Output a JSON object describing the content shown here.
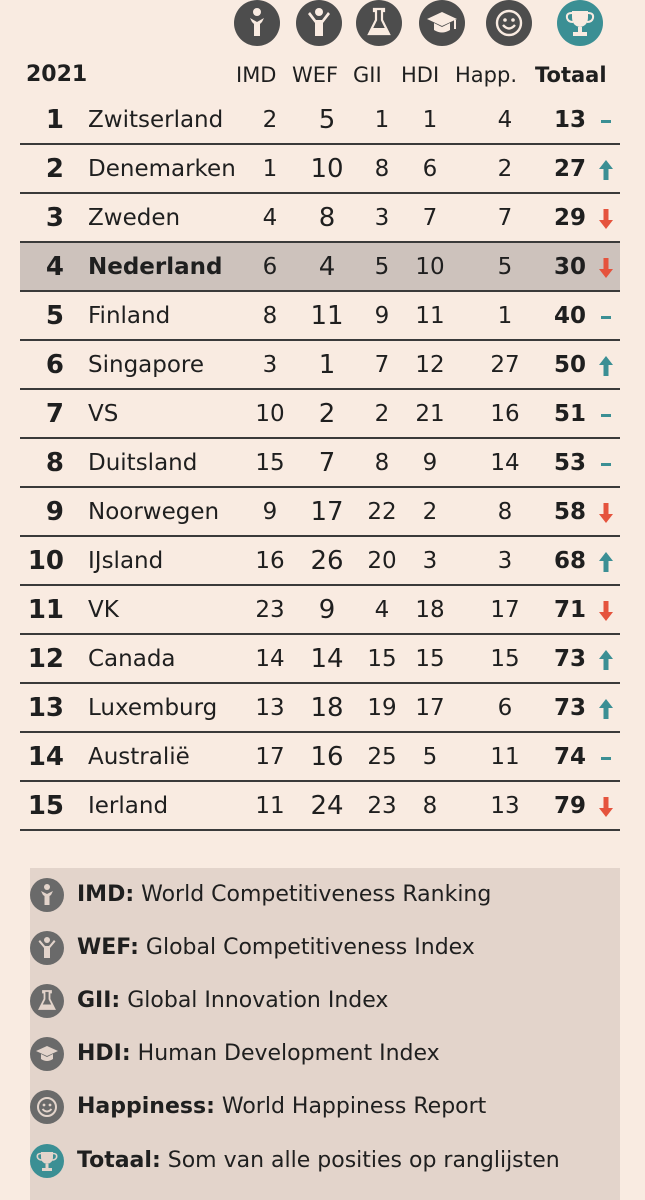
{
  "colors": {
    "up": "#3b8f94",
    "down": "#e5533d",
    "flat": "#3b8f94",
    "highlight": "#cdc2bc"
  },
  "icons": [
    "person-arms-down-icon",
    "person-arms-up-icon",
    "flask-icon",
    "graduation-cap-icon",
    "smiley-icon",
    "trophy-icon"
  ],
  "header": {
    "year": "2021",
    "imd": "IMD",
    "wef": "WEF",
    "gii": "GII",
    "hdi": "HDI",
    "happ": "Happ.",
    "total": "Totaal"
  },
  "rows": [
    {
      "rank": "1",
      "country": "Zwitserland",
      "imd": "2",
      "wef": "5",
      "gii": "1",
      "hdi": "1",
      "happ": "4",
      "total": "13",
      "trend": "flat"
    },
    {
      "rank": "2",
      "country": "Denemarken",
      "imd": "1",
      "wef": "10",
      "gii": "8",
      "hdi": "6",
      "happ": "2",
      "total": "27",
      "trend": "up"
    },
    {
      "rank": "3",
      "country": "Zweden",
      "imd": "4",
      "wef": "8",
      "gii": "3",
      "hdi": "7",
      "happ": "7",
      "total": "29",
      "trend": "down"
    },
    {
      "rank": "4",
      "country": "Nederland",
      "imd": "6",
      "wef": "4",
      "gii": "5",
      "hdi": "10",
      "happ": "5",
      "total": "30",
      "trend": "down",
      "highlight": true
    },
    {
      "rank": "5",
      "country": "Finland",
      "imd": "8",
      "wef": "11",
      "gii": "9",
      "hdi": "11",
      "happ": "1",
      "total": "40",
      "trend": "flat"
    },
    {
      "rank": "6",
      "country": "Singapore",
      "imd": "3",
      "wef": "1",
      "gii": "7",
      "hdi": "12",
      "happ": "27",
      "total": "50",
      "trend": "up"
    },
    {
      "rank": "7",
      "country": "VS",
      "imd": "10",
      "wef": "2",
      "gii": "2",
      "hdi": "21",
      "happ": "16",
      "total": "51",
      "trend": "flat"
    },
    {
      "rank": "8",
      "country": "Duitsland",
      "imd": "15",
      "wef": "7",
      "gii": "8",
      "hdi": "9",
      "happ": "14",
      "total": "53",
      "trend": "flat"
    },
    {
      "rank": "9",
      "country": "Noorwegen",
      "imd": "9",
      "wef": "17",
      "gii": "22",
      "hdi": "2",
      "happ": "8",
      "total": "58",
      "trend": "down"
    },
    {
      "rank": "10",
      "country": "IJsland",
      "imd": "16",
      "wef": "26",
      "gii": "20",
      "hdi": "3",
      "happ": "3",
      "total": "68",
      "trend": "up"
    },
    {
      "rank": "11",
      "country": "VK",
      "imd": "23",
      "wef": "9",
      "gii": "4",
      "hdi": "18",
      "happ": "17",
      "total": "71",
      "trend": "down"
    },
    {
      "rank": "12",
      "country": "Canada",
      "imd": "14",
      "wef": "14",
      "gii": "15",
      "hdi": "15",
      "happ": "15",
      "total": "73",
      "trend": "up"
    },
    {
      "rank": "13",
      "country": "Luxemburg",
      "imd": "13",
      "wef": "18",
      "gii": "19",
      "hdi": "17",
      "happ": "6",
      "total": "73",
      "trend": "up"
    },
    {
      "rank": "14",
      "country": "Australië",
      "imd": "17",
      "wef": "16",
      "gii": "25",
      "hdi": "5",
      "happ": "11",
      "total": "74",
      "trend": "flat"
    },
    {
      "rank": "15",
      "country": "Ierland",
      "imd": "11",
      "wef": "24",
      "gii": "23",
      "hdi": "8",
      "happ": "13",
      "total": "79",
      "trend": "down"
    }
  ],
  "legend": [
    {
      "key": "IMD:",
      "text": " World Competitiveness Ranking",
      "icon": "person-arms-down-icon"
    },
    {
      "key": "WEF:",
      "text": " Global Competitiveness Index",
      "icon": "person-arms-up-icon"
    },
    {
      "key": "GII:",
      "text": " Global Innovation Index",
      "icon": "flask-icon"
    },
    {
      "key": "HDI:",
      "text": " Human Development Index",
      "icon": "graduation-cap-icon"
    },
    {
      "key": "Happiness:",
      "text": " World Happiness Report",
      "icon": "smiley-icon"
    },
    {
      "key": "Totaal:",
      "text": " Som van alle posities op ranglijsten",
      "icon": "trophy-icon"
    }
  ]
}
